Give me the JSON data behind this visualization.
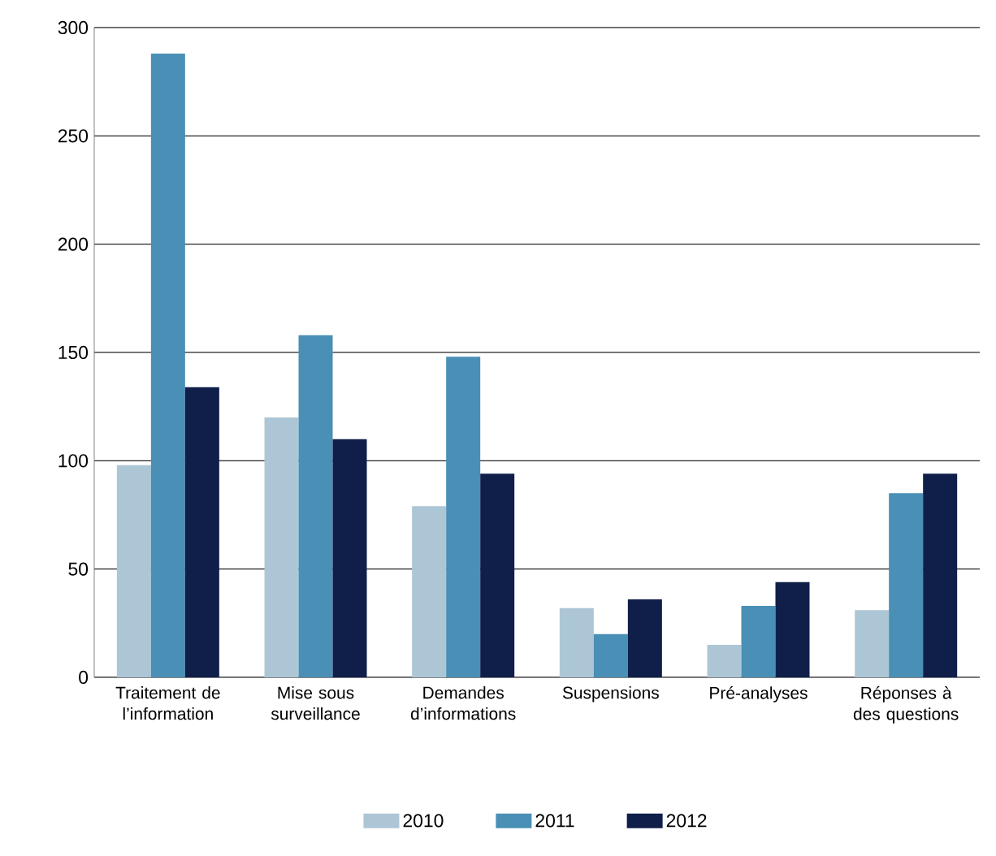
{
  "chart_data": {
    "type": "bar",
    "categories": [
      "Traitement de l’information",
      "Mise sous surveillance",
      "Demandes d’informations",
      "Suspensions",
      "Pré-analyses",
      "Réponses à des questions"
    ],
    "series": [
      {
        "name": "2010",
        "color": "#adc6d6",
        "values": [
          98,
          120,
          79,
          32,
          15,
          31
        ]
      },
      {
        "name": "2011",
        "color": "#4a8fb5",
        "values": [
          288,
          158,
          148,
          20,
          33,
          85
        ]
      },
      {
        "name": "2012",
        "color": "#0f1f4a",
        "values": [
          134,
          110,
          94,
          36,
          44,
          94
        ]
      }
    ],
    "ylim": [
      0,
      300
    ],
    "yticks": [
      0,
      50,
      100,
      150,
      200,
      250,
      300
    ],
    "grid": "y",
    "legend": "bottom"
  }
}
